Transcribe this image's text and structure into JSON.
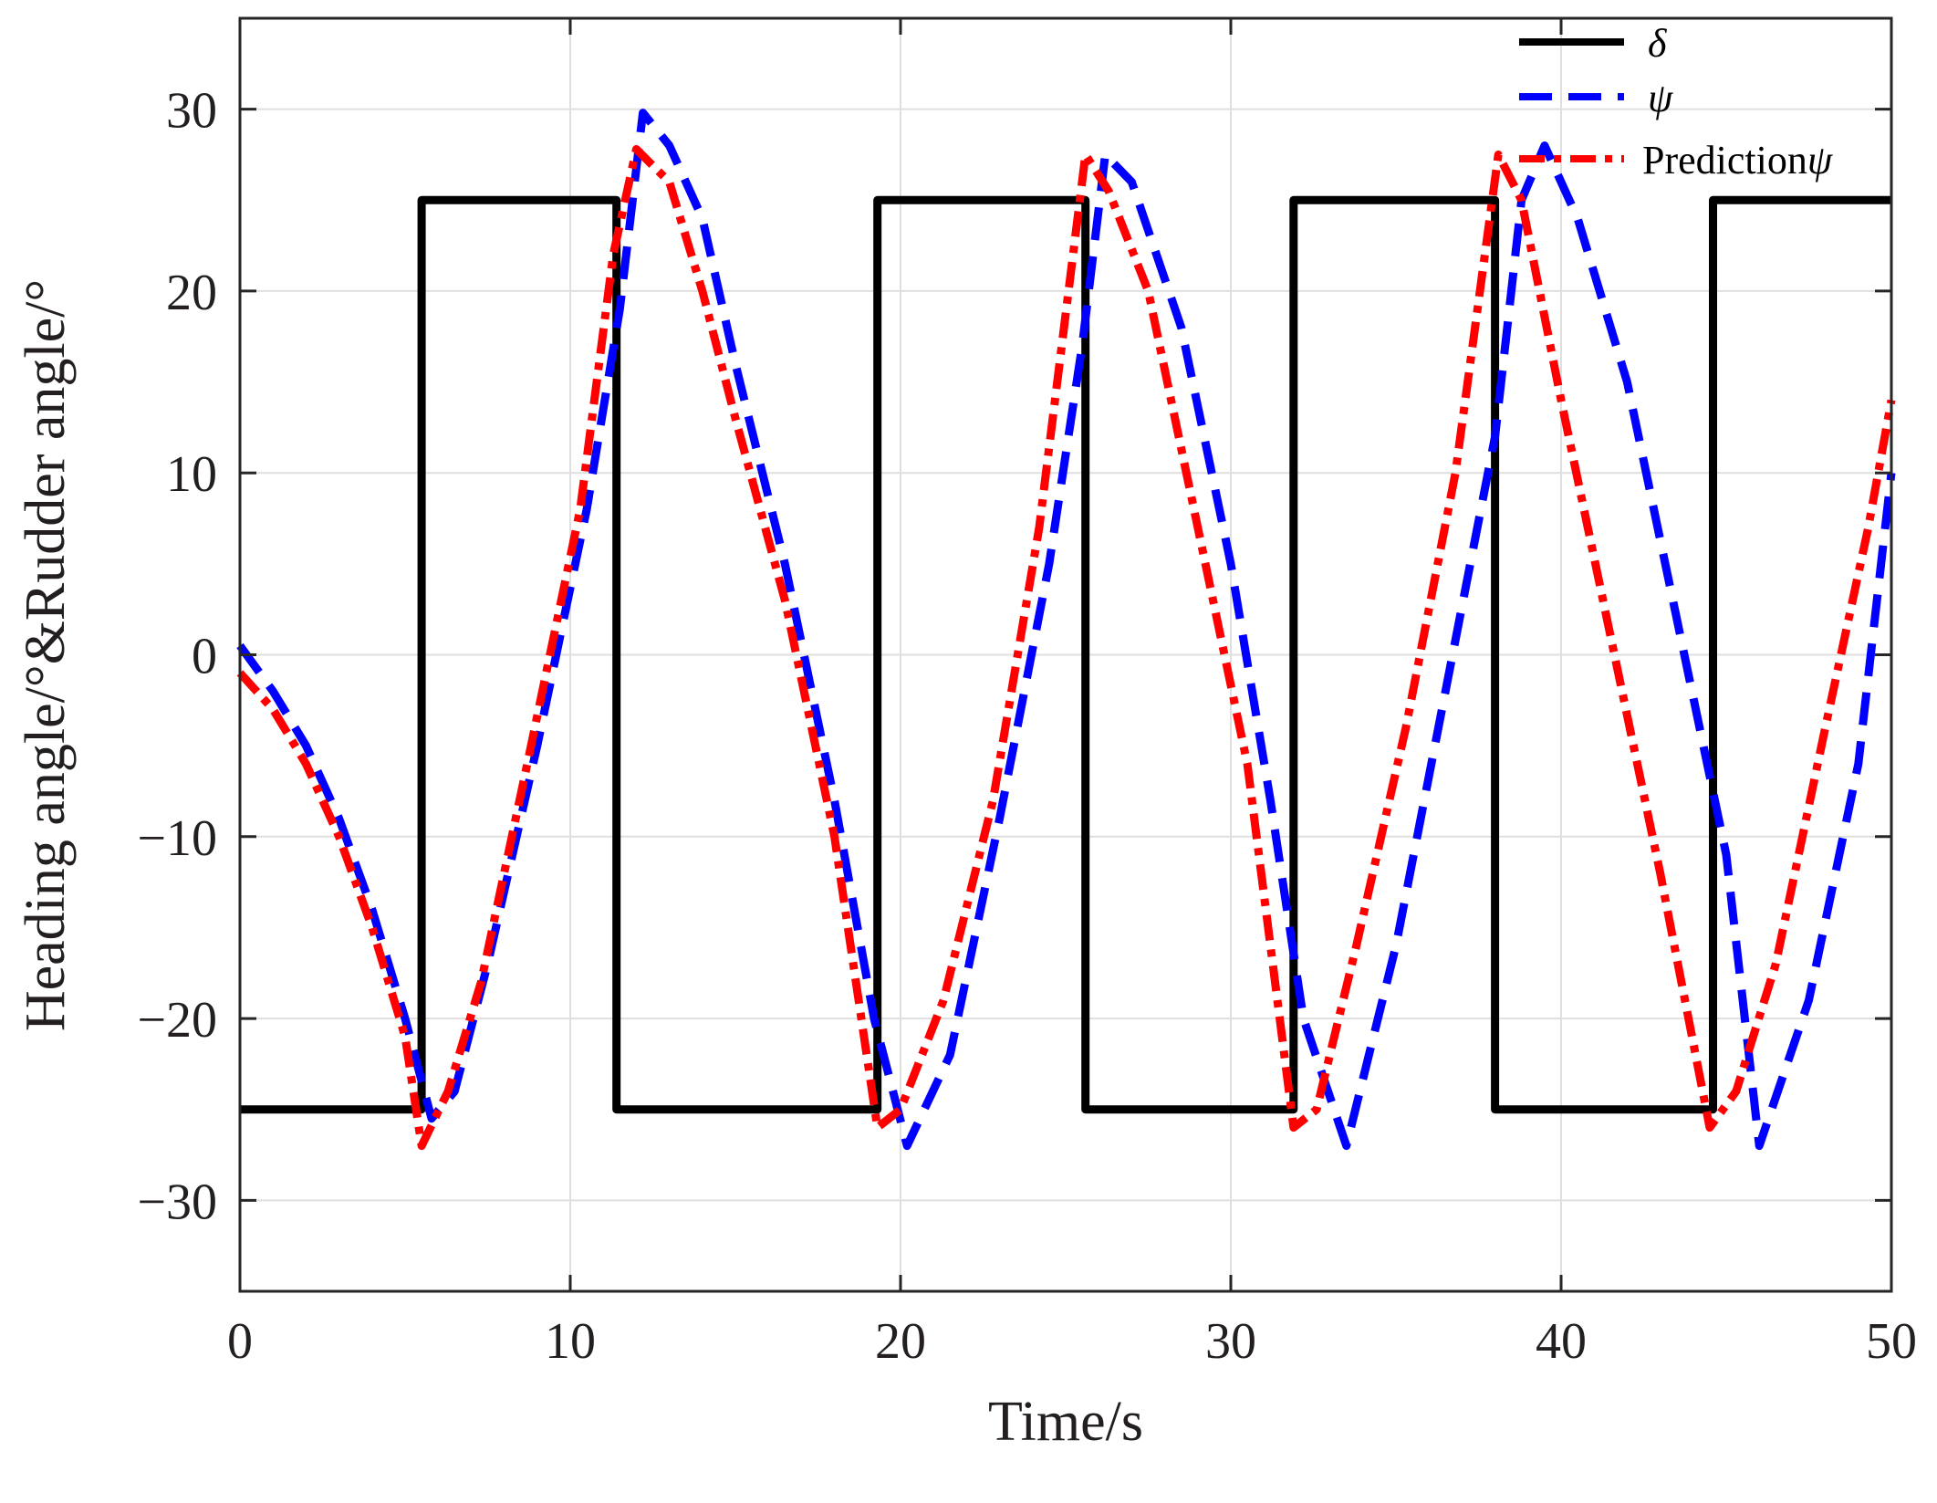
{
  "chart_data": {
    "type": "line",
    "title": "",
    "xlabel": "Time/s",
    "ylabel": "Heading angle/°&Rudder angle/°",
    "xlim": [
      0,
      50
    ],
    "ylim": [
      -35,
      35
    ],
    "xticks": [
      0,
      10,
      20,
      30,
      40,
      50
    ],
    "yticks": [
      -30,
      -20,
      -10,
      0,
      10,
      20,
      30
    ],
    "xtick_labels": [
      "0",
      "10",
      "20",
      "30",
      "40",
      "50"
    ],
    "ytick_labels": [
      "−30",
      "−20",
      "−10",
      "0",
      "10",
      "20",
      "30"
    ],
    "grid": true,
    "legend_position": "top-right",
    "legend": [
      {
        "name": "δ",
        "prefix": "",
        "symbol": "δ",
        "style": "solid"
      },
      {
        "name": "ψ",
        "prefix": "",
        "symbol": "ψ",
        "style": "dashed"
      },
      {
        "name": "Predictionψ",
        "prefix": "Prediction",
        "symbol": "ψ",
        "style": "dashdot"
      }
    ],
    "series": [
      {
        "name": "δ",
        "color": "#000000",
        "style": "solid",
        "x": [
          0,
          5.5,
          5.5,
          11.4,
          11.4,
          19.3,
          19.3,
          25.6,
          25.6,
          31.9,
          31.9,
          38.0,
          38.0,
          44.6,
          44.6,
          50
        ],
        "y": [
          -25,
          -25,
          25,
          25,
          -25,
          -25,
          25,
          25,
          -25,
          -25,
          25,
          25,
          -25,
          -25,
          25,
          25
        ]
      },
      {
        "name": "ψ",
        "color": "#0000ff",
        "style": "dashed",
        "x": [
          0,
          1,
          2,
          3,
          4,
          5,
          5.8,
          6.5,
          7.5,
          9,
          10.5,
          11.5,
          12.2,
          13,
          14,
          15,
          16.5,
          18,
          19.2,
          20.2,
          21.5,
          23,
          24.5,
          25.5,
          26.2,
          27,
          28.5,
          30,
          31.2,
          32.2,
          33.5,
          35,
          36.5,
          38,
          38.8,
          39.5,
          40.5,
          42,
          43.5,
          45,
          46,
          47.5,
          49,
          50
        ],
        "y": [
          0.5,
          -2,
          -5,
          -9,
          -14,
          -20,
          -25.5,
          -24,
          -17,
          -5,
          8,
          19,
          29.8,
          28,
          24,
          16,
          5,
          -8,
          -20,
          -27,
          -22,
          -9,
          5,
          17,
          27.5,
          26,
          18,
          5,
          -8,
          -20,
          -27,
          -16,
          -2,
          12,
          25,
          28,
          24,
          15,
          2,
          -11,
          -27,
          -19,
          -6,
          10
        ]
      },
      {
        "name": "Predictionψ",
        "color": "#ff0000",
        "style": "dashdot",
        "x": [
          0,
          1,
          2,
          3,
          4,
          5,
          5.5,
          6.3,
          7.3,
          8.7,
          10.3,
          11.3,
          12,
          13,
          14,
          15,
          16.5,
          18,
          19.3,
          20,
          21.3,
          22.8,
          24.2,
          25.6,
          26.3,
          27.5,
          29,
          30.5,
          31.9,
          32.6,
          33.8,
          35.3,
          36.8,
          38.1,
          38.8,
          40,
          41.5,
          43,
          44.5,
          45.3,
          46.5,
          48,
          49.3,
          50
        ],
        "y": [
          -1,
          -3,
          -6,
          -10,
          -15,
          -21,
          -27,
          -24,
          -18,
          -6,
          8,
          22,
          27.8,
          26,
          20,
          13,
          3,
          -10,
          -26,
          -25,
          -19,
          -8,
          7,
          27.5,
          25.5,
          20,
          7,
          -6,
          -26,
          -25,
          -16,
          -4,
          10,
          27.5,
          25,
          14,
          1,
          -12,
          -26,
          -24,
          -17,
          -4,
          7,
          14
        ]
      }
    ]
  }
}
